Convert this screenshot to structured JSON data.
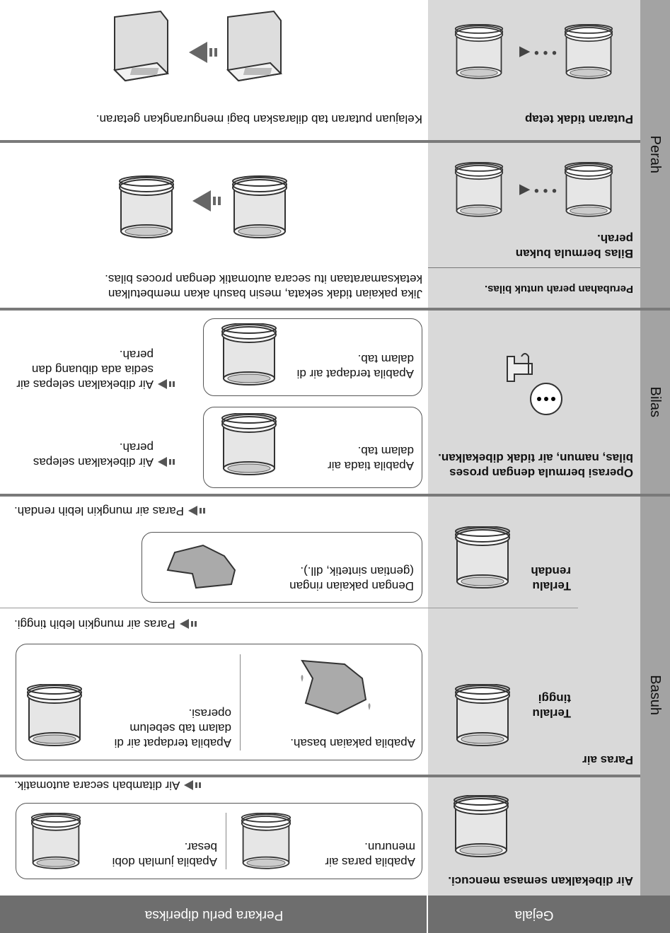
{
  "header": {
    "symptom": "Gejala",
    "check": "Perkara perlu diperiksa"
  },
  "sections": {
    "wash": "Basuh",
    "rinse": "Bilas",
    "spin": "Perah"
  },
  "rows": [
    {
      "symptom": "Air dibekalkan semasa mencuci.",
      "cases": [
        "Apabila paras air menurun.",
        "Apabila jumlah dobi besar."
      ],
      "result": "Air ditambah secara automatik."
    },
    {
      "symptom": "Paras air",
      "sub": [
        {
          "label": "Terlalu tinggi",
          "cases": [
            "Apabila pakaian basah.",
            "Apabila terdapat air di dalam tab sebelum operasi."
          ],
          "result": "Paras air mungkin lebih tinggi."
        },
        {
          "label": "Terlalu rendah",
          "cases": [
            "Dengan pakaian ringan (gentian sintetik, dll.)."
          ],
          "result": "Paras air mungkin lebih rendah."
        }
      ]
    },
    {
      "symptom": "Operasi bermula dengan proses bilas, namun, air tidak dibekalkan.",
      "cases": [
        {
          "text": "Apabila tiada air dalam tab.",
          "result": "Air dibekalkan selepas perah."
        },
        {
          "text": "Apabila terdapat air di dalam tab.",
          "result": "Air dibekalkan selepas air sedia ada dibuang dan perah."
        }
      ]
    },
    {
      "heading": "Perubahan perah untuk bilas.",
      "symptom": "Bilas bermula bukan perah.",
      "result": "Jika pakaian tidak sekata, mesin basuh akan membetulkan ketaksamarataan itu secara automatik dengan proces bilas."
    },
    {
      "symptom": "Putaran tidak tetap",
      "result": "Kelajuan putaran tab dilaraskan bagi mengurangkan getaran."
    }
  ]
}
